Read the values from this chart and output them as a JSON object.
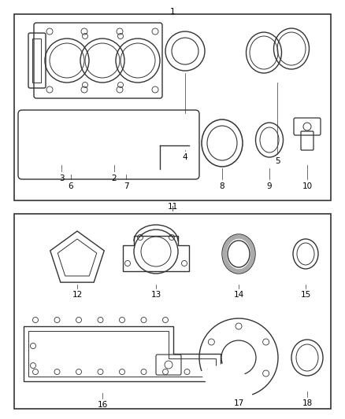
{
  "bg_color": "#ffffff",
  "line_color": "#333333",
  "text_color": "#000000",
  "fig_width": 4.38,
  "fig_height": 5.33,
  "dpi": 100,
  "label_fontsize": 7.5
}
